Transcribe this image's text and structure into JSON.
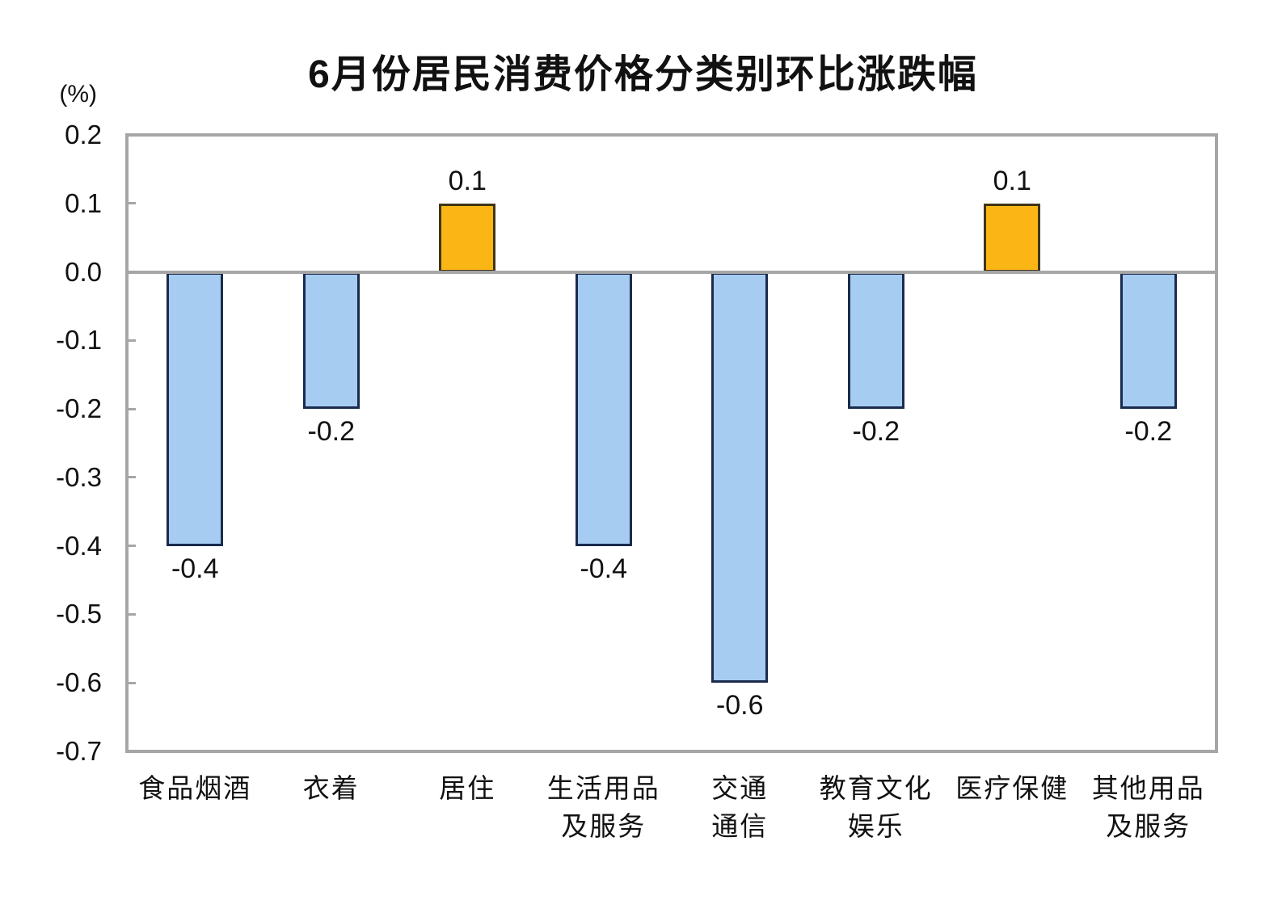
{
  "chart_data": {
    "type": "bar",
    "title": "6月份居民消费价格分类别环比涨跌幅",
    "unit_label": "(%)",
    "categories": [
      [
        "食品烟酒"
      ],
      [
        "衣着"
      ],
      [
        "居住"
      ],
      [
        "生活用品",
        "及服务"
      ],
      [
        "交通",
        "通信"
      ],
      [
        "教育文化",
        "娱乐"
      ],
      [
        "医疗保健"
      ],
      [
        "其他用品",
        "及服务"
      ]
    ],
    "category_ids": [
      "food-tobacco-alcohol",
      "clothing",
      "housing",
      "household-goods-services",
      "transport-communication",
      "education-culture-entertainment",
      "healthcare",
      "other-goods-services"
    ],
    "values": [
      -0.4,
      -0.2,
      0.1,
      -0.4,
      -0.6,
      -0.2,
      0.1,
      -0.2
    ],
    "data_labels": [
      "-0.4",
      "-0.2",
      "0.1",
      "-0.4",
      "-0.6",
      "-0.2",
      "0.1",
      "-0.2"
    ],
    "y_ticks": [
      "0.2",
      "0.1",
      "0.0",
      "-0.1",
      "-0.2",
      "-0.3",
      "-0.4",
      "-0.5",
      "-0.6",
      "-0.7"
    ],
    "ylim": [
      -0.7,
      0.2
    ],
    "xlabel": "",
    "ylabel": "(%)",
    "grid": "zero-line-only",
    "legend": "none",
    "colors": {
      "positive_fill": "#fbb616",
      "positive_border": "#3f3516",
      "negative_fill": "#a6ccf2",
      "negative_border": "#1b2b4d",
      "axis_line": "#a6a6a6",
      "text": "#111111"
    }
  }
}
